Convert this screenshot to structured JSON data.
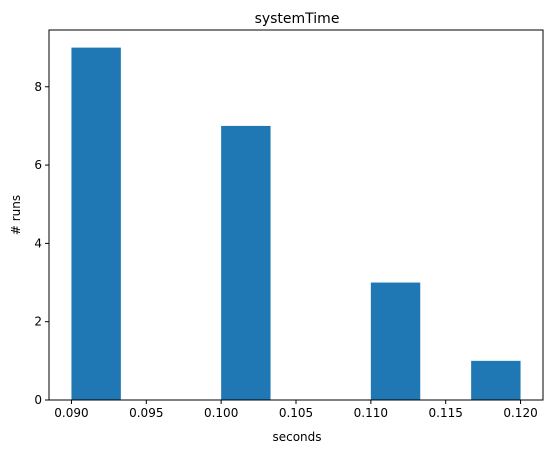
{
  "chart_data": {
    "type": "bar",
    "title": "systemTime",
    "xlabel": "seconds",
    "ylabel": "# runs",
    "bar_color": "#1f77b4",
    "bins": [
      {
        "x0": 0.09,
        "x1": 0.0933,
        "count": 9
      },
      {
        "x0": 0.0933,
        "x1": 0.0967,
        "count": 0
      },
      {
        "x0": 0.0967,
        "x1": 0.1,
        "count": 0
      },
      {
        "x0": 0.1,
        "x1": 0.1033,
        "count": 7
      },
      {
        "x0": 0.1033,
        "x1": 0.1067,
        "count": 0
      },
      {
        "x0": 0.1067,
        "x1": 0.11,
        "count": 0
      },
      {
        "x0": 0.11,
        "x1": 0.1133,
        "count": 3
      },
      {
        "x0": 0.1133,
        "x1": 0.1167,
        "count": 0
      },
      {
        "x0": 0.1167,
        "x1": 0.12,
        "count": 1
      }
    ],
    "xlim": [
      0.0885,
      0.1215
    ],
    "ylim": [
      0,
      9.45
    ],
    "x_ticks": [
      "0.090",
      "0.095",
      "0.100",
      "0.105",
      "0.110",
      "0.115",
      "0.120"
    ],
    "y_ticks": [
      "0",
      "2",
      "4",
      "6",
      "8"
    ],
    "grid": false,
    "legend": "none"
  }
}
